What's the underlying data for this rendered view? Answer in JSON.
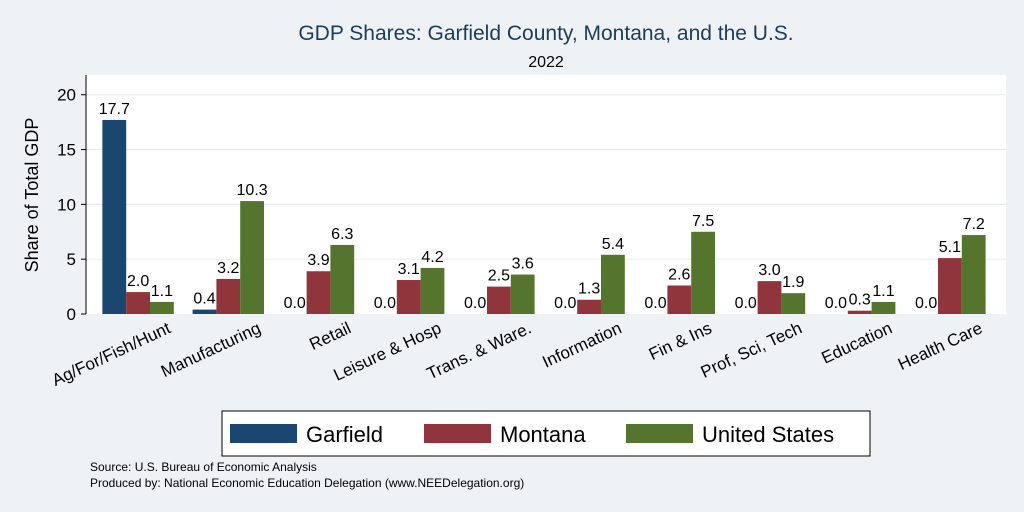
{
  "chart_data": {
    "type": "bar",
    "title": "GDP Shares: Garfield County, Montana, and the U.S.",
    "subtitle": "2022",
    "xlabel": "",
    "ylabel": "Share of Total GDP",
    "ylim": [
      0,
      21.8
    ],
    "yticks": [
      0,
      5,
      10,
      15,
      20
    ],
    "grid": true,
    "legend_position": "bottom",
    "categories": [
      "Ag/For/Fish/Hunt",
      "Manufacturing",
      "Retail",
      "Leisure & Hosp",
      "Trans. & Ware.",
      "Information",
      "Fin & Ins",
      "Prof, Sci, Tech",
      "Education",
      "Health Care"
    ],
    "series": [
      {
        "name": "Garfield",
        "color": "#1a476f",
        "values": [
          17.7,
          0.4,
          0.0,
          0.0,
          0.0,
          0.0,
          0.0,
          0.0,
          0.0,
          0.0
        ]
      },
      {
        "name": "Montana",
        "color": "#90353b",
        "values": [
          2.0,
          3.2,
          3.9,
          3.1,
          2.5,
          1.3,
          2.6,
          3.0,
          0.3,
          5.1
        ]
      },
      {
        "name": "United States",
        "color": "#55752f",
        "values": [
          1.1,
          10.3,
          6.3,
          4.2,
          3.6,
          5.4,
          7.5,
          1.9,
          1.1,
          7.2
        ]
      }
    ]
  },
  "footer": {
    "source": "Source: U.S. Bureau of Economic Analysis",
    "produced_by": "Produced by: National Economic Education Delegation (www.NEEDelegation.org)"
  }
}
